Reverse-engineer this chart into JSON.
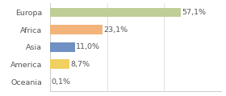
{
  "categories": [
    "Europa",
    "Africa",
    "Asia",
    "America",
    "Oceania"
  ],
  "values": [
    57.1,
    23.1,
    11.0,
    8.7,
    0.1
  ],
  "labels": [
    "57,1%",
    "23,1%",
    "11,0%",
    "8,7%",
    "0,1%"
  ],
  "bar_colors": [
    "#bece96",
    "#f2b47a",
    "#7090c4",
    "#f0d060",
    "#cccccc"
  ],
  "background_color": "#ffffff",
  "xlim": [
    0,
    75
  ],
  "bar_height": 0.55,
  "label_fontsize": 6.8,
  "tick_fontsize": 6.8,
  "grid_ticks": [
    0,
    25,
    50,
    75
  ]
}
